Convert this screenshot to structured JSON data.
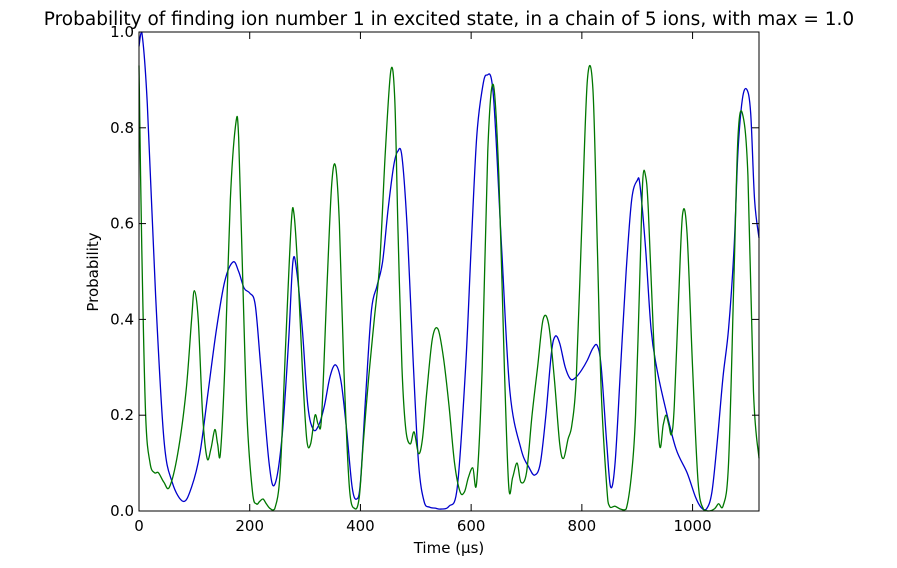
{
  "chart_data": {
    "type": "line",
    "title": "Probability of finding ion number 1 in excited state, in a chain of 5 ions, with max = 1.0",
    "xlabel": "Time (μs)",
    "ylabel": "Probability",
    "xlim": [
      0,
      1120
    ],
    "ylim": [
      0,
      1.0
    ],
    "xticks": [
      0,
      200,
      400,
      600,
      800,
      1000
    ],
    "xtick_labels": [
      "0",
      "200",
      "400",
      "600",
      "800",
      "1000"
    ],
    "yticks": [
      0.0,
      0.2,
      0.4,
      0.6,
      0.8,
      1.0
    ],
    "ytick_labels": [
      "0.0",
      "0.2",
      "0.4",
      "0.6",
      "0.8",
      "1.0"
    ],
    "series": [
      {
        "name": "blue",
        "color": "#0000cc",
        "x": [
          0,
          5,
          15,
          30,
          45,
          60,
          80,
          95,
          110,
          125,
          140,
          155,
          170,
          180,
          190,
          200,
          210,
          220,
          235,
          245,
          258,
          270,
          278,
          285,
          295,
          305,
          315,
          325,
          335,
          345,
          355,
          365,
          375,
          385,
          393,
          400,
          410,
          420,
          430,
          440,
          450,
          460,
          467,
          475,
          485,
          495,
          505,
          515,
          525,
          535,
          545,
          560,
          575,
          590,
          600,
          610,
          620,
          628,
          640,
          655,
          670,
          690,
          705,
          715,
          725,
          735,
          745,
          752,
          760,
          770,
          780,
          790,
          800,
          810,
          820,
          828,
          835,
          845,
          852,
          860,
          870,
          880,
          890,
          900,
          905,
          915,
          925,
          935,
          950,
          970,
          990,
          1005,
          1015,
          1025,
          1035,
          1045,
          1055,
          1065,
          1075,
          1082,
          1090,
          1098,
          1105,
          1112,
          1120
        ],
        "y": [
          0.97,
          1.0,
          0.85,
          0.45,
          0.15,
          0.06,
          0.02,
          0.05,
          0.12,
          0.25,
          0.38,
          0.48,
          0.52,
          0.5,
          0.465,
          0.455,
          0.43,
          0.3,
          0.1,
          0.055,
          0.15,
          0.35,
          0.52,
          0.5,
          0.38,
          0.22,
          0.17,
          0.18,
          0.22,
          0.28,
          0.305,
          0.27,
          0.17,
          0.05,
          0.025,
          0.06,
          0.25,
          0.42,
          0.47,
          0.52,
          0.63,
          0.72,
          0.75,
          0.74,
          0.58,
          0.32,
          0.1,
          0.02,
          0.008,
          0.006,
          0.004,
          0.01,
          0.05,
          0.3,
          0.55,
          0.78,
          0.88,
          0.91,
          0.87,
          0.55,
          0.25,
          0.13,
          0.09,
          0.075,
          0.1,
          0.2,
          0.33,
          0.365,
          0.35,
          0.3,
          0.275,
          0.28,
          0.295,
          0.315,
          0.34,
          0.345,
          0.3,
          0.14,
          0.05,
          0.1,
          0.3,
          0.5,
          0.65,
          0.69,
          0.68,
          0.55,
          0.38,
          0.3,
          0.22,
          0.13,
          0.08,
          0.03,
          0.008,
          0.004,
          0.04,
          0.15,
          0.28,
          0.38,
          0.55,
          0.75,
          0.86,
          0.88,
          0.83,
          0.65,
          0.57
        ]
      },
      {
        "name": "green",
        "color": "#007700",
        "x": [
          0,
          5,
          12,
          20,
          28,
          35,
          45,
          55,
          70,
          85,
          95,
          100,
          107,
          115,
          123,
          130,
          137,
          142,
          147,
          155,
          165,
          175,
          180,
          187,
          195,
          205,
          212,
          218,
          224,
          230,
          237,
          245,
          255,
          265,
          275,
          280,
          287,
          295,
          303,
          310,
          318,
          324,
          330,
          340,
          348,
          355,
          362,
          370,
          380,
          390,
          398,
          405,
          415,
          425,
          435,
          445,
          455,
          462,
          468,
          475,
          482,
          490,
          497,
          505,
          512,
          520,
          530,
          540,
          550,
          560,
          570,
          580,
          588,
          595,
          603,
          610,
          620,
          630,
          640,
          650,
          660,
          668,
          675,
          683,
          690,
          700,
          710,
          720,
          730,
          740,
          750,
          760,
          767,
          775,
          782,
          790,
          800,
          810,
          820,
          828,
          835,
          845,
          850,
          860,
          870,
          880,
          890,
          897,
          905,
          910,
          915,
          920,
          930,
          940,
          947,
          952,
          957,
          962,
          967,
          975,
          982,
          990,
          1000,
          1010,
          1020,
          1030,
          1040,
          1047,
          1055,
          1065,
          1075,
          1082,
          1090,
          1100,
          1110,
          1120
        ],
        "y": [
          0.93,
          0.55,
          0.2,
          0.1,
          0.08,
          0.08,
          0.06,
          0.05,
          0.12,
          0.25,
          0.4,
          0.46,
          0.4,
          0.2,
          0.11,
          0.13,
          0.17,
          0.14,
          0.12,
          0.3,
          0.65,
          0.81,
          0.78,
          0.5,
          0.2,
          0.04,
          0.015,
          0.02,
          0.025,
          0.015,
          0.005,
          0.004,
          0.08,
          0.35,
          0.6,
          0.62,
          0.5,
          0.3,
          0.15,
          0.14,
          0.2,
          0.18,
          0.2,
          0.48,
          0.68,
          0.72,
          0.6,
          0.3,
          0.05,
          0.005,
          0.03,
          0.14,
          0.28,
          0.4,
          0.52,
          0.75,
          0.92,
          0.86,
          0.58,
          0.3,
          0.17,
          0.14,
          0.165,
          0.12,
          0.15,
          0.25,
          0.36,
          0.38,
          0.32,
          0.22,
          0.1,
          0.04,
          0.04,
          0.07,
          0.09,
          0.06,
          0.3,
          0.75,
          0.89,
          0.7,
          0.3,
          0.05,
          0.07,
          0.1,
          0.06,
          0.08,
          0.2,
          0.3,
          0.4,
          0.39,
          0.28,
          0.14,
          0.11,
          0.15,
          0.18,
          0.28,
          0.6,
          0.9,
          0.88,
          0.55,
          0.25,
          0.05,
          0.01,
          0.01,
          0.004,
          0.004,
          0.08,
          0.2,
          0.5,
          0.69,
          0.7,
          0.63,
          0.35,
          0.14,
          0.18,
          0.2,
          0.18,
          0.16,
          0.22,
          0.45,
          0.62,
          0.58,
          0.3,
          0.06,
          0.003,
          0.0,
          0.005,
          0.015,
          0.01,
          0.1,
          0.5,
          0.78,
          0.83,
          0.7,
          0.25,
          0.11
        ]
      }
    ]
  }
}
